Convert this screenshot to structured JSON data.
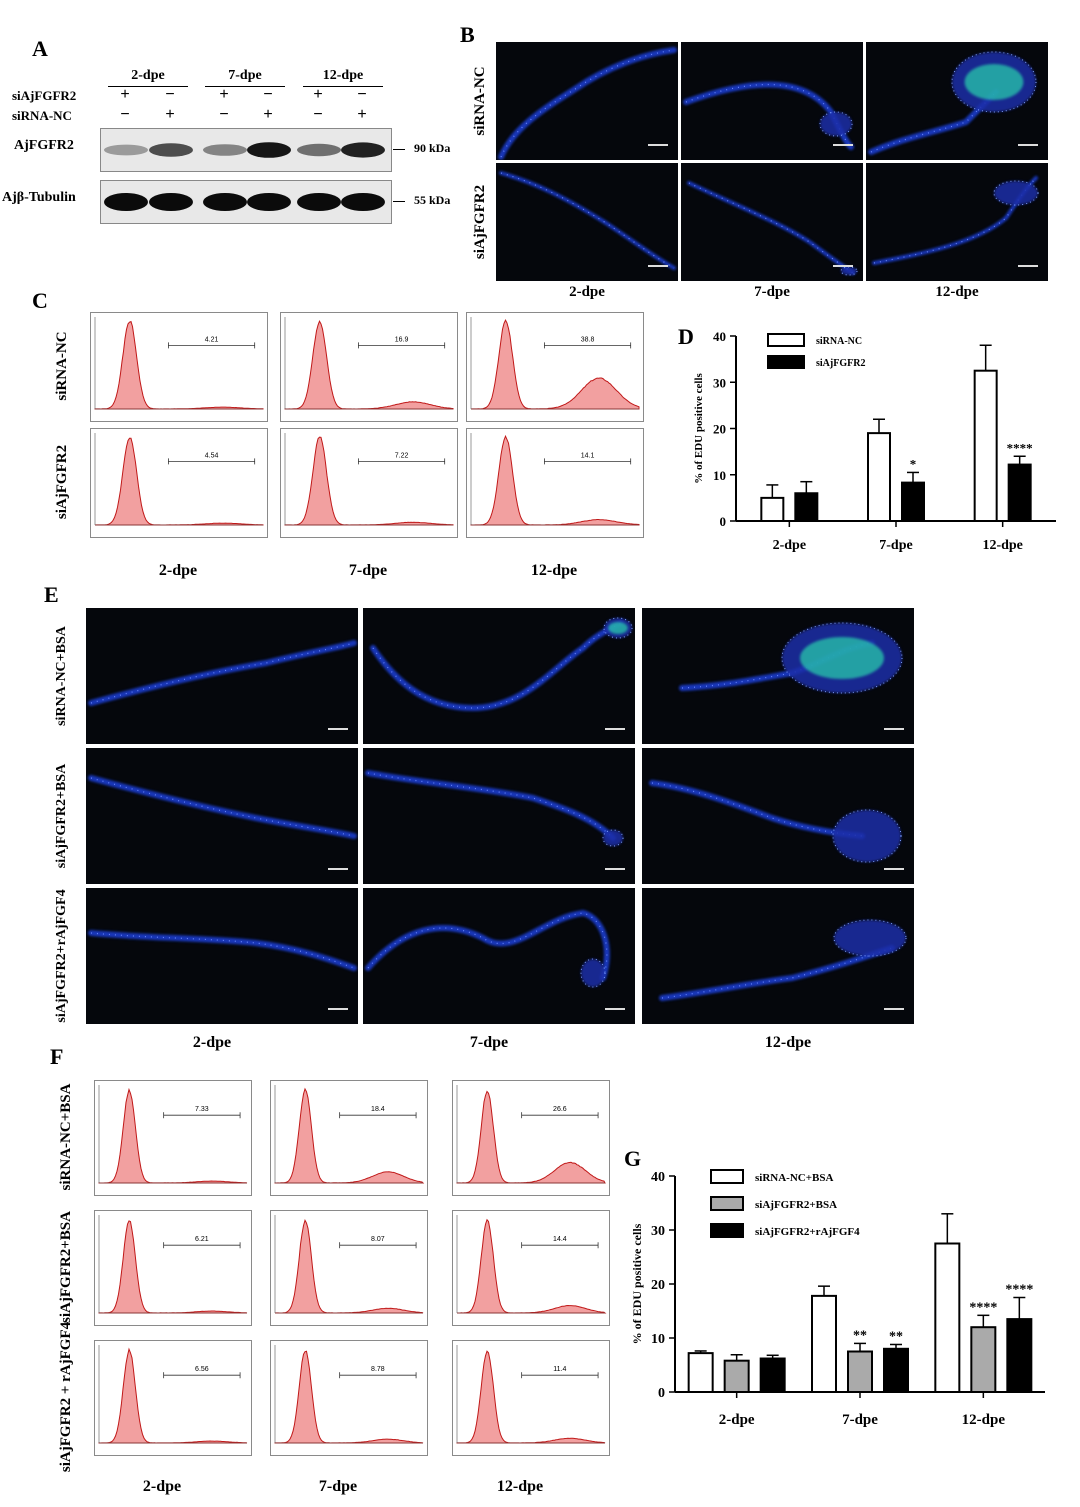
{
  "panelA": {
    "label": "A",
    "groups": [
      "2-dpe",
      "7-dpe",
      "12-dpe"
    ],
    "rows": [
      "siAjFGFR2",
      "siRNA-NC"
    ],
    "signs": [
      [
        "+",
        "−",
        "+",
        "−",
        "+",
        "−"
      ],
      [
        "−",
        "+",
        "−",
        "+",
        "−",
        "+"
      ]
    ],
    "blots": [
      {
        "name": "AjFGFR2",
        "kda": "90 kDa",
        "intensity": [
          0.35,
          0.7,
          0.45,
          0.95,
          0.55,
          0.9
        ]
      },
      {
        "name": "Ajβ-Tubulin",
        "kda": "55 kDa",
        "intensity": [
          1,
          1,
          1,
          1,
          1,
          1
        ]
      }
    ]
  },
  "panelB": {
    "label": "B",
    "rows": [
      "siRNA-NC",
      "siAjFGFR2"
    ],
    "cols": [
      "2-dpe",
      "7-dpe",
      "12-dpe"
    ]
  },
  "panelC": {
    "label": "C",
    "rows": [
      "siRNA-NC",
      "siAjFGFR2"
    ],
    "cols": [
      "2-dpe",
      "7-dpe",
      "12-dpe"
    ],
    "values": [
      [
        "4.21",
        "16.9",
        "38.8"
      ],
      [
        "4.54",
        "7.22",
        "14.1"
      ]
    ]
  },
  "panelD": {
    "label": "D",
    "chart_data": {
      "type": "bar",
      "categories": [
        "2-dpe",
        "7-dpe",
        "12-dpe"
      ],
      "ylabel": "% of EDU positive cells",
      "ylim": [
        0,
        40
      ],
      "yticks": [
        0,
        10,
        20,
        30,
        40
      ],
      "legend_position": "top-left",
      "series": [
        {
          "name": "siRNA-NC",
          "values": [
            5,
            19,
            32.5
          ],
          "errors": [
            2.8,
            3,
            5.5
          ],
          "color": "#ffffff",
          "stars": [
            "",
            "",
            ""
          ]
        },
        {
          "name": "siAjFGFR2",
          "values": [
            6,
            8.3,
            12.2
          ],
          "errors": [
            2.5,
            2.2,
            1.8
          ],
          "color": "#000000",
          "stars": [
            "",
            "*",
            "****"
          ]
        }
      ]
    }
  },
  "panelE": {
    "label": "E",
    "rows": [
      "siRNA-NC+BSA",
      "siAjFGFR2+BSA",
      "siAjFGFR2+rAjFGF4"
    ],
    "cols": [
      "2-dpe",
      "7-dpe",
      "12-dpe"
    ]
  },
  "panelF": {
    "label": "F",
    "rows": [
      "siRNA-NC+BSA",
      "siAjFGFR2+BSA",
      "siAjFGFR2 + rAjFGF4"
    ],
    "cols": [
      "2-dpe",
      "7-dpe",
      "12-dpe"
    ],
    "values": [
      [
        "7.33",
        "18.4",
        "26.6"
      ],
      [
        "6.21",
        "8.07",
        "14.4"
      ],
      [
        "6.56",
        "8.78",
        "11.4"
      ]
    ]
  },
  "panelG": {
    "label": "G",
    "chart_data": {
      "type": "bar",
      "categories": [
        "2-dpe",
        "7-dpe",
        "12-dpe"
      ],
      "ylabel": "% of EDU positive cells",
      "ylim": [
        0,
        40
      ],
      "yticks": [
        0,
        10,
        20,
        30,
        40
      ],
      "legend_position": "top-left",
      "series": [
        {
          "name": "siRNA-NC+BSA",
          "values": [
            7.2,
            17.8,
            27.5
          ],
          "errors": [
            0.4,
            1.8,
            5.5
          ],
          "color": "#ffffff",
          "stars": [
            "",
            "",
            ""
          ]
        },
        {
          "name": "siAjFGFR2+BSA",
          "values": [
            5.8,
            7.5,
            12
          ],
          "errors": [
            1.1,
            1.5,
            2.2
          ],
          "color": "#aaaaaa",
          "stars": [
            "",
            "**",
            "****"
          ]
        },
        {
          "name": "siAjFGFR2+rAjFGF4",
          "values": [
            6.2,
            8,
            13.5
          ],
          "errors": [
            0.6,
            0.8,
            4
          ],
          "color": "#000000",
          "stars": [
            "",
            "**",
            "****"
          ]
        }
      ]
    }
  }
}
